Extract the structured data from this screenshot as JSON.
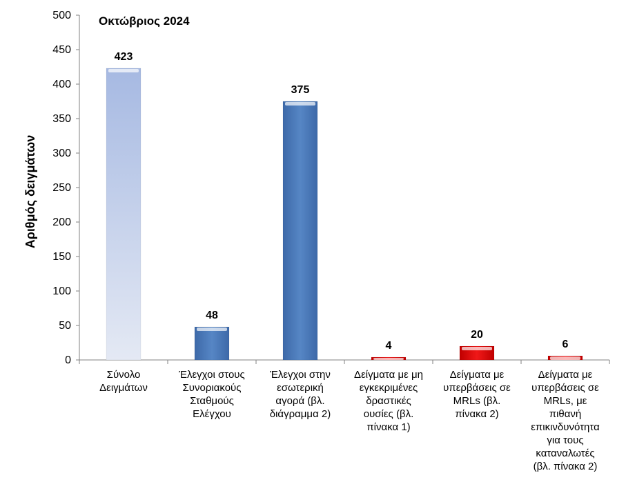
{
  "chart_data": {
    "type": "bar",
    "title": "Οκτώβριος 2024",
    "ylabel": "Αριθμός δειγμάτων",
    "xlabel": "",
    "ylim": [
      0,
      500
    ],
    "yticks": [
      0,
      50,
      100,
      150,
      200,
      250,
      300,
      350,
      400,
      450,
      500
    ],
    "grid": false,
    "categories": [
      [
        "Σύνολο",
        "Δειγμάτων"
      ],
      [
        "Έλεγχοι στους",
        "Συνοριακούς",
        "Σταθμούς",
        "Ελέγχου"
      ],
      [
        "Έλεγχοι στην",
        "εσωτερική",
        "αγορά (βλ.",
        "διάγραμμα 2)"
      ],
      [
        "Δείγματα με μη",
        "εγκεκριμένες",
        "δραστικές",
        "ουσίες (βλ.",
        "πίνακα 1)"
      ],
      [
        "Δείγματα με",
        "υπερβάσεις σε",
        "MRLs (βλ.",
        "πίνακα 2)"
      ],
      [
        "Δείγματα με",
        "υπερβάσεις σε",
        "MRLs, με",
        "πιθανή",
        "επικινδυνότητα",
        "για τους",
        "καταναλωτές",
        "(βλ. πίνακα 2)"
      ]
    ],
    "values": [
      423,
      48,
      375,
      4,
      20,
      6
    ],
    "colors": [
      "#aebfe3",
      "#4f7fbe",
      "#4f7fbe",
      "#e01010",
      "#e01010",
      "#e01010"
    ]
  }
}
